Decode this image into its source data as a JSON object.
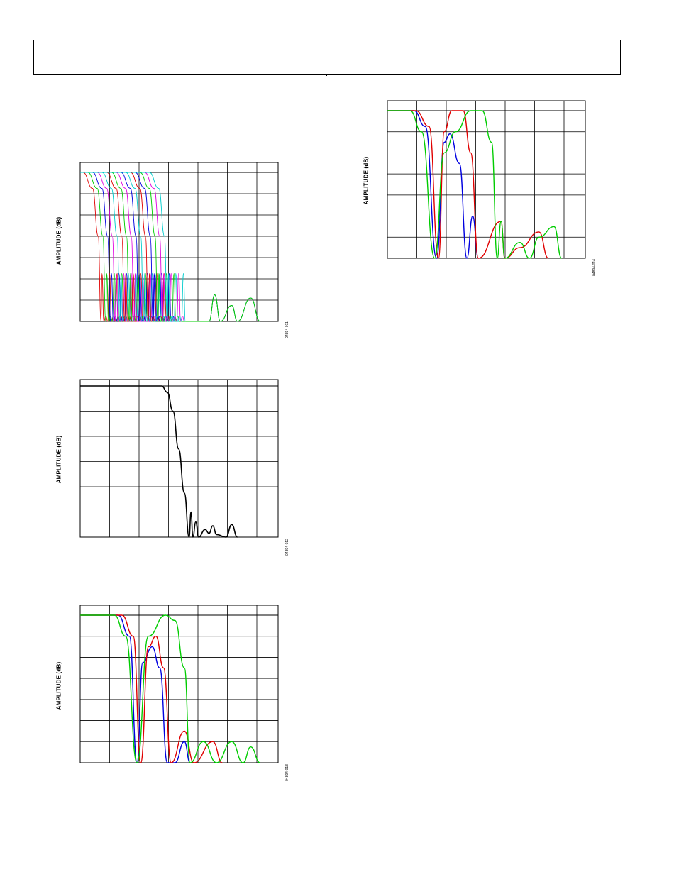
{
  "page": {
    "figure_codes": [
      "04894-011",
      "04894-012",
      "04894-013",
      "04894-014"
    ]
  },
  "chart_data": [
    {
      "id": "fig-011",
      "type": "line",
      "title": "",
      "xlabel": "",
      "ylabel": "AMPLITUDE (dB)",
      "figure_code": "04894-011",
      "xlim": [
        0,
        1
      ],
      "ylim": [
        -140,
        0
      ],
      "grid": true,
      "note": "Multiple low-pass responses with staggered cutoff frequencies",
      "series": [
        {
          "color": "#e00000",
          "cutoff": 0.095
        },
        {
          "color": "#00cc00",
          "cutoff": 0.12
        },
        {
          "color": "#0000e0",
          "cutoff": 0.145
        },
        {
          "color": "#e000e0",
          "cutoff": 0.17
        },
        {
          "color": "#00cccc",
          "cutoff": 0.195
        },
        {
          "color": "#e00000",
          "cutoff": 0.22
        },
        {
          "color": "#00cc00",
          "cutoff": 0.245
        },
        {
          "color": "#e000e0",
          "cutoff": 0.27
        },
        {
          "color": "#0000e0",
          "cutoff": 0.295
        },
        {
          "color": "#00cccc",
          "cutoff": 0.32
        },
        {
          "color": "#e00000",
          "cutoff": 0.345
        },
        {
          "color": "#0000e0",
          "cutoff": 0.37
        },
        {
          "color": "#00cc00",
          "cutoff": 0.395
        },
        {
          "color": "#e000e0",
          "cutoff": 0.42
        },
        {
          "color": "#00cccc",
          "cutoff": 0.445
        }
      ]
    },
    {
      "id": "fig-012",
      "type": "line",
      "title": "",
      "xlabel": "",
      "ylabel": "AMPLITUDE (dB)",
      "figure_code": "04894-012",
      "xlim": [
        0,
        1
      ],
      "ylim": [
        -120,
        0
      ],
      "grid": true,
      "series": [
        {
          "color": "#000000",
          "points": [
            [
              0,
              0
            ],
            [
              0.43,
              0
            ],
            [
              0.46,
              -5
            ],
            [
              0.49,
              -20
            ],
            [
              0.52,
              -50
            ],
            [
              0.55,
              -85
            ],
            [
              0.575,
              -120
            ],
            [
              0.585,
              -100
            ],
            [
              0.595,
              -120
            ],
            [
              0.61,
              -108
            ],
            [
              0.625,
              -120
            ],
            [
              0.66,
              -114
            ],
            [
              0.68,
              -117
            ],
            [
              0.7,
              -111
            ],
            [
              0.72,
              -118
            ],
            [
              0.77,
              -120
            ],
            [
              0.8,
              -110
            ],
            [
              0.83,
              -120
            ]
          ]
        }
      ]
    },
    {
      "id": "fig-013",
      "type": "line",
      "title": "",
      "xlabel": "",
      "ylabel": "AMPLITUDE (dB)",
      "figure_code": "04894-013",
      "xlim": [
        0,
        1
      ],
      "ylim": [
        -140,
        0
      ],
      "grid": true,
      "series": [
        {
          "color": "#0000e0",
          "points": [
            [
              0,
              0
            ],
            [
              0.2,
              0
            ],
            [
              0.26,
              -20
            ],
            [
              0.3,
              -140
            ],
            [
              0.33,
              -45
            ],
            [
              0.38,
              -30
            ],
            [
              0.42,
              -50
            ],
            [
              0.46,
              -140
            ],
            [
              0.5,
              -140
            ],
            [
              0.55,
              -120
            ],
            [
              0.58,
              -140
            ]
          ]
        },
        {
          "color": "#e00000",
          "points": [
            [
              0,
              0
            ],
            [
              0.22,
              0
            ],
            [
              0.28,
              -20
            ],
            [
              0.32,
              -140
            ],
            [
              0.36,
              -30
            ],
            [
              0.4,
              -20
            ],
            [
              0.44,
              -50
            ],
            [
              0.48,
              -140
            ],
            [
              0.55,
              -110
            ],
            [
              0.6,
              -140
            ],
            [
              0.7,
              -120
            ],
            [
              0.75,
              -140
            ]
          ]
        },
        {
          "color": "#00cc00",
          "points": [
            [
              0,
              0
            ],
            [
              0.18,
              0
            ],
            [
              0.24,
              -20
            ],
            [
              0.3,
              -140
            ],
            [
              0.36,
              -20
            ],
            [
              0.45,
              0
            ],
            [
              0.5,
              -5
            ],
            [
              0.55,
              -50
            ],
            [
              0.58,
              -140
            ],
            [
              0.65,
              -120
            ],
            [
              0.72,
              -140
            ],
            [
              0.8,
              -120
            ],
            [
              0.86,
              -140
            ],
            [
              0.9,
              -125
            ],
            [
              0.95,
              -140
            ]
          ]
        }
      ]
    },
    {
      "id": "fig-014",
      "type": "line",
      "title": "",
      "xlabel": "",
      "ylabel": "AMPLITUDE (dB)",
      "figure_code": "04894-014",
      "xlim": [
        0,
        1
      ],
      "ylim": [
        -140,
        0
      ],
      "grid": true,
      "series": [
        {
          "color": "#0000e0",
          "points": [
            [
              0,
              0
            ],
            [
              0.14,
              0
            ],
            [
              0.2,
              -15
            ],
            [
              0.26,
              -140
            ],
            [
              0.3,
              -30
            ],
            [
              0.33,
              -22
            ],
            [
              0.38,
              -50
            ],
            [
              0.42,
              -140
            ],
            [
              0.45,
              -100
            ],
            [
              0.48,
              -140
            ]
          ]
        },
        {
          "color": "#e00000",
          "points": [
            [
              0,
              0
            ],
            [
              0.15,
              0
            ],
            [
              0.22,
              -15
            ],
            [
              0.27,
              -140
            ],
            [
              0.3,
              -20
            ],
            [
              0.34,
              0
            ],
            [
              0.4,
              0
            ],
            [
              0.44,
              -40
            ],
            [
              0.48,
              -140
            ],
            [
              0.6,
              -105
            ],
            [
              0.62,
              -140
            ],
            [
              0.7,
              -130
            ],
            [
              0.8,
              -115
            ],
            [
              0.85,
              -140
            ]
          ]
        },
        {
          "color": "#00cc00",
          "points": [
            [
              0,
              0
            ],
            [
              0.12,
              0
            ],
            [
              0.18,
              -20
            ],
            [
              0.25,
              -140
            ],
            [
              0.3,
              -40
            ],
            [
              0.36,
              -20
            ],
            [
              0.44,
              0
            ],
            [
              0.5,
              0
            ],
            [
              0.55,
              -30
            ],
            [
              0.58,
              -140
            ],
            [
              0.6,
              -105
            ],
            [
              0.62,
              -140
            ],
            [
              0.7,
              -125
            ],
            [
              0.75,
              -140
            ],
            [
              0.8,
              -120
            ],
            [
              0.88,
              -110
            ],
            [
              0.92,
              -140
            ]
          ]
        }
      ]
    }
  ]
}
